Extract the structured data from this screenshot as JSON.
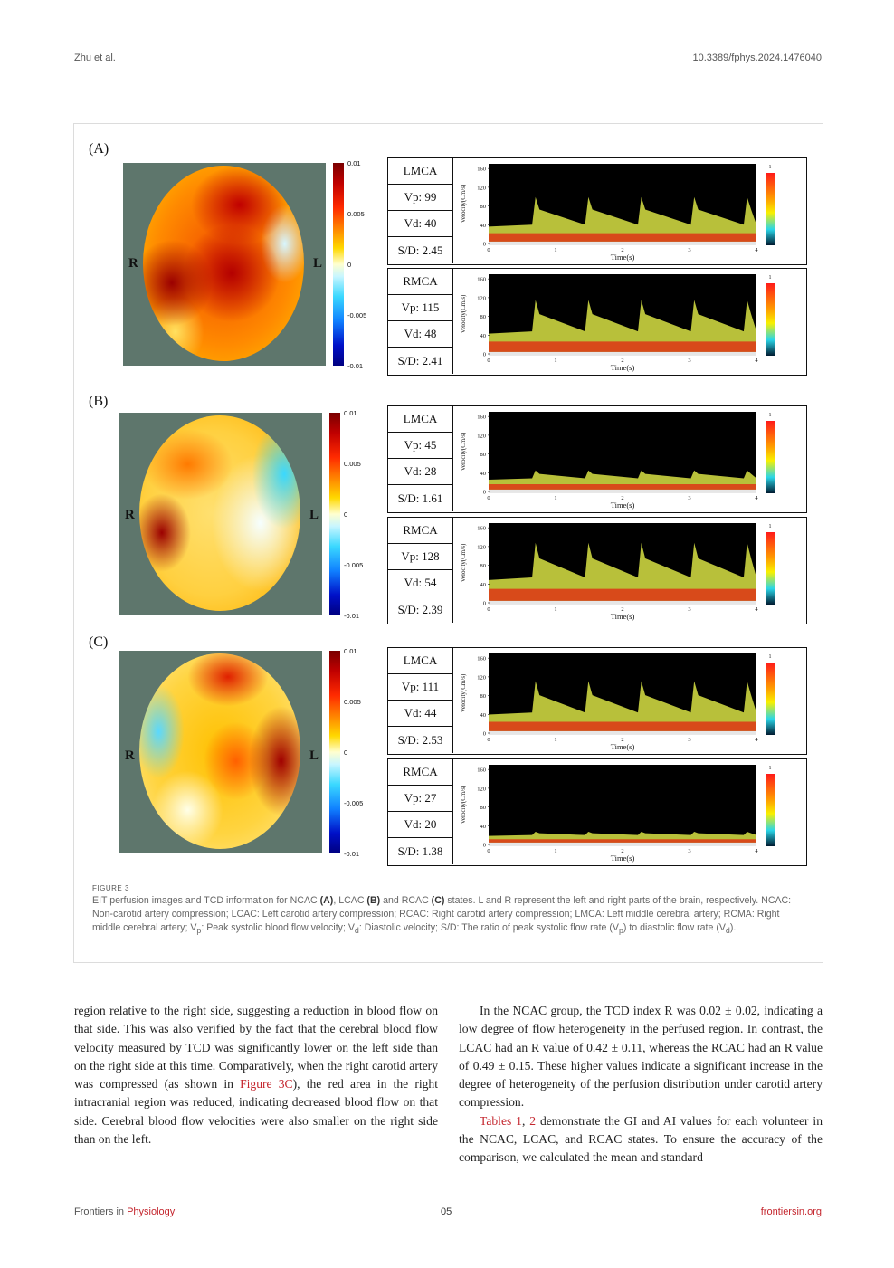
{
  "header": {
    "left": "Zhu et al.",
    "right": "10.3389/fphys.2024.1476040"
  },
  "figure": {
    "side_labels": {
      "right": "R",
      "left": "L"
    },
    "colorbar_ticks": [
      "0.01",
      "0.005",
      "0",
      "-0.005",
      "-0.01"
    ],
    "plot": {
      "ylabel": "Velocity(Cm/s)",
      "xlabel": "Time(s)",
      "yticks": [
        "160",
        "120",
        "80",
        "40",
        "0"
      ],
      "xticks": [
        "0",
        "1",
        "2",
        "3",
        "4"
      ],
      "intensity_top": "1"
    },
    "panels": [
      {
        "label": "(A)",
        "tcd": [
          {
            "vessel": "LMCA",
            "vp": "Vp: 99",
            "vd": "Vd: 40",
            "sd": "S/D: 2.45",
            "peak": 99,
            "dia": 40
          },
          {
            "vessel": "RMCA",
            "vp": "Vp: 115",
            "vd": "Vd: 48",
            "sd": "S/D: 2.41",
            "peak": 115,
            "dia": 48
          }
        ]
      },
      {
        "label": "(B)",
        "tcd": [
          {
            "vessel": "LMCA",
            "vp": "Vp: 45",
            "vd": "Vd: 28",
            "sd": "S/D: 1.61",
            "peak": 45,
            "dia": 28
          },
          {
            "vessel": "RMCA",
            "vp": "Vp: 128",
            "vd": "Vd: 54",
            "sd": "S/D: 2.39",
            "peak": 128,
            "dia": 54
          }
        ]
      },
      {
        "label": "(C)",
        "tcd": [
          {
            "vessel": "LMCA",
            "vp": "Vp: 111",
            "vd": "Vd: 44",
            "sd": "S/D: 2.53",
            "peak": 111,
            "dia": 44
          },
          {
            "vessel": "RMCA",
            "vp": "Vp: 27",
            "vd": "Vd: 20",
            "sd": "S/D: 1.38",
            "peak": 27,
            "dia": 20
          }
        ]
      }
    ],
    "caption": {
      "label": "FIGURE 3",
      "p1": "EIT perfusion images and TCD information for NCAC ",
      "a": "(A)",
      "p2": ", LCAC ",
      "b": "(B)",
      "p3": " and RCAC ",
      "c": "(C)",
      "p4": " states. L and R represent the left and right parts of the brain, respectively. NCAC: Non-carotid artery compression; LCAC: Left carotid artery compression; RCAC: Right carotid artery compression; LMCA: Left middle cerebral artery; RCMA: Right middle cerebral artery; V",
      "sub_p": "p",
      "p5": ": Peak systolic blood flow velocity; V",
      "sub_d": "d",
      "p6": ": Diastolic velocity; S/D: The ratio of peak systolic flow rate (V",
      "sub_p2": "p",
      "p7": ") to diastolic flow rate (V",
      "sub_d2": "d",
      "p8": ")."
    }
  },
  "body": {
    "left": {
      "t1": "region relative to the right side, suggesting a reduction in blood flow on that side. This was also verified by the fact that the cerebral blood flow velocity measured by TCD was significantly lower on the left side than on the right side at this time. Comparatively, when the right carotid artery was compressed (as shown in ",
      "link": "Figure 3C",
      "t2": "), the red area in the right intracranial region was reduced, indicating decreased blood flow on that side. Cerebral blood flow velocities were also smaller on the right side than on the left."
    },
    "right": {
      "p1": "In the NCAC group, the TCD index R was 0.02 ± 0.02, indicating a low degree of flow heterogeneity in the perfused region. In contrast, the LCAC had an R value of 0.42 ± 0.11, whereas the RCAC had an R value of 0.49 ± 0.15. These higher values indicate a significant increase in the degree of heterogeneity of the perfusion distribution under carotid artery compression.",
      "link1": "Tables 1",
      "sep": ", ",
      "link2": "2",
      "p2": " demonstrate the GI and AI values for each volunteer in the NCAC, LCAC, and RCAC states. To ensure the accuracy of the comparison, we calculated the mean and standard"
    }
  },
  "footer": {
    "left_prefix": "Frontiers in ",
    "left_journal": "Physiology",
    "page": "05",
    "right": "frontiersin.org"
  }
}
